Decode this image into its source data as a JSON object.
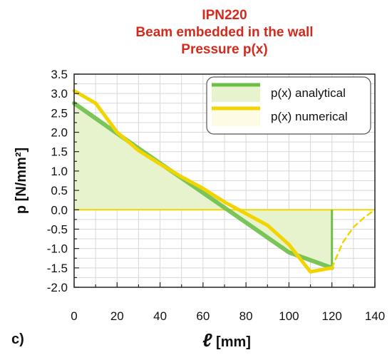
{
  "chart_data": {
    "type": "line",
    "panel_label": "c)",
    "title_lines": [
      "IPN220",
      "Beam embedded in the wall",
      "Pressure p(x)"
    ],
    "xlabel_symbol": "ℓ",
    "xlabel_unit": "[mm]",
    "ylabel": "p [N/mm²]",
    "xlim": [
      0,
      140
    ],
    "ylim": [
      -2.0,
      3.5
    ],
    "xticks": [
      0,
      20,
      40,
      60,
      80,
      100,
      120,
      140
    ],
    "yticks": [
      3.5,
      3.0,
      2.5,
      2.0,
      1.5,
      1.0,
      0.5,
      0.0,
      -0.5,
      -1.0,
      -1.5,
      -2.0
    ],
    "grid": true,
    "legend_position": "top-right",
    "series": [
      {
        "name": "p(x) analytical",
        "color": "#6dbf4a",
        "fill_color": "#e6f3cd",
        "x": [
          0,
          20,
          40,
          60,
          80,
          100,
          120
        ],
        "y": [
          2.75,
          1.97,
          1.2,
          0.44,
          -0.33,
          -1.1,
          -1.5
        ]
      },
      {
        "name": "p(x) numerical",
        "color": "#f2d500",
        "x": [
          0,
          10,
          20,
          30,
          40,
          50,
          60,
          70,
          80,
          90,
          100,
          110,
          120
        ],
        "y": [
          3.07,
          2.75,
          2.0,
          1.53,
          1.18,
          0.85,
          0.55,
          0.2,
          -0.1,
          -0.4,
          -0.9,
          -1.6,
          -1.5
        ]
      },
      {
        "name": "",
        "style": "dashed",
        "color": "#f2d500",
        "x": [
          120,
          125,
          130,
          135,
          140
        ],
        "y": [
          -1.5,
          -0.85,
          -0.45,
          -0.2,
          0.0
        ]
      }
    ]
  }
}
